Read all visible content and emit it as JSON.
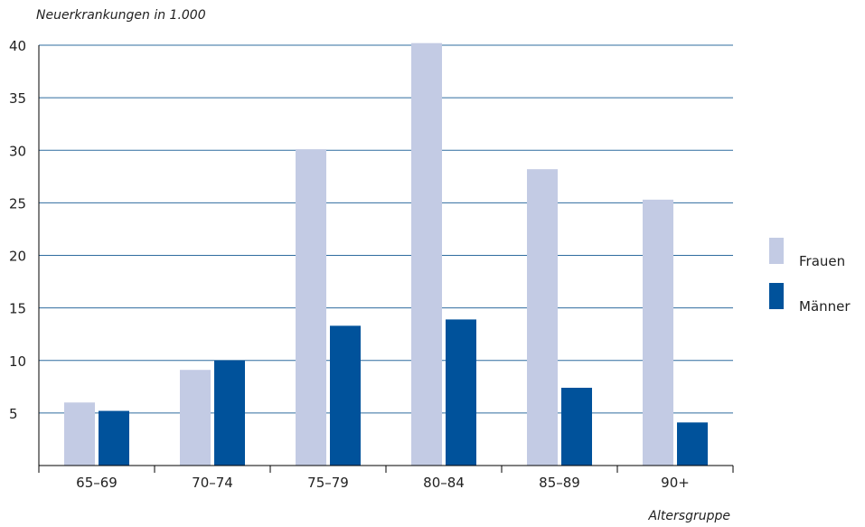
{
  "chart_data": {
    "type": "bar",
    "title": "",
    "ylabel": "Neuerkrankungen in 1.000",
    "xlabel": "Altersgruppe",
    "categories": [
      "65–69",
      "70–74",
      "75–79",
      "80–84",
      "85–89",
      "90+"
    ],
    "series": [
      {
        "name": "Frauen",
        "color": "#c3cbe4",
        "values": [
          6.0,
          9.1,
          30.1,
          40.2,
          28.2,
          25.3
        ]
      },
      {
        "name": "Männer",
        "color": "#00529b",
        "values": [
          5.2,
          10.0,
          13.3,
          13.9,
          7.4,
          4.1
        ]
      }
    ],
    "ylim": [
      0,
      40
    ],
    "yticks": [
      5,
      10,
      15,
      20,
      25,
      30,
      35,
      40
    ],
    "grid": true,
    "gridColor": "#2f6c9f",
    "legend_position": "right"
  }
}
